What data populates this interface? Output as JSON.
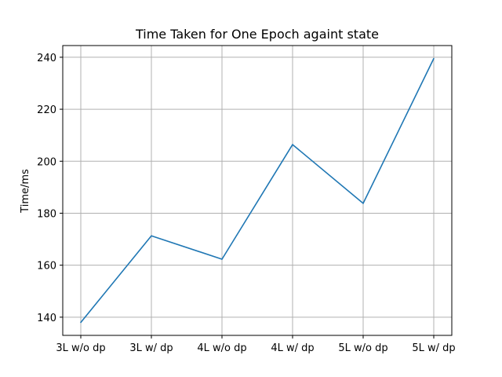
{
  "chart_data": {
    "type": "line",
    "title": "Time Taken for One Epoch againt state",
    "xlabel": "",
    "ylabel": "Time/ms",
    "categories": [
      "3L w/o dp",
      "3L w/ dp",
      "4L w/o dp",
      "4L w/ dp",
      "5L w/o dp",
      "5L w/ dp"
    ],
    "series": [
      {
        "values": [
          138,
          171.3,
          162.3,
          206.4,
          183.8,
          239.5
        ]
      }
    ],
    "yticks": [
      140,
      160,
      180,
      200,
      220,
      240
    ],
    "ylim": [
      133,
      244.5
    ],
    "grid": true,
    "line_color": "#1f77b4"
  }
}
